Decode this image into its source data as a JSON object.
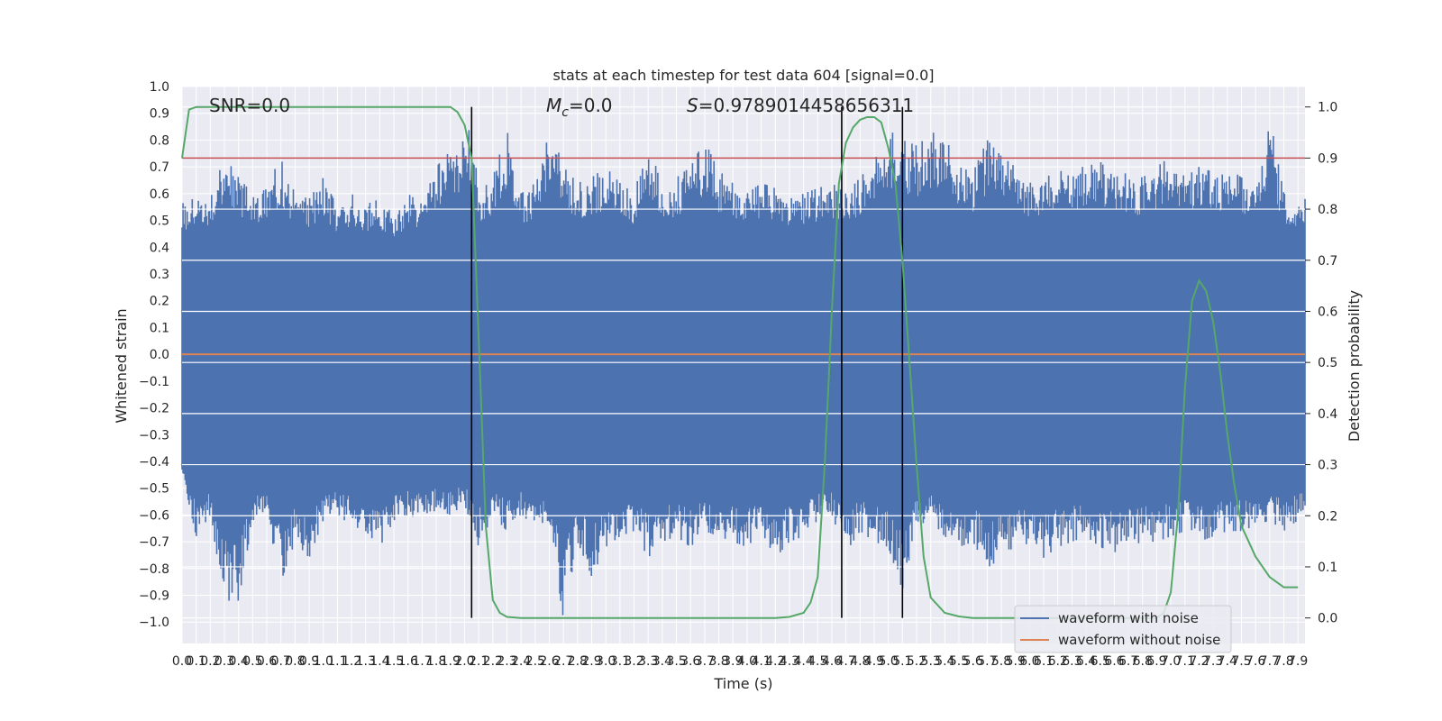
{
  "chart_data": {
    "type": "line",
    "title": "stats at each timestep for test data 604 [signal=0.0]",
    "xlabel": "Time (s)",
    "ylabel": "Whitened strain",
    "y2label": "Detection probability",
    "xlim": [
      0.0,
      7.95
    ],
    "ylim": [
      -1.08,
      1.0
    ],
    "y2lim": [
      -0.05,
      1.04
    ],
    "x_ticks": [
      "0.0",
      "0.1",
      "0.2",
      "0.3",
      "0.4",
      "0.5",
      "0.6",
      "0.7",
      "0.8",
      "0.9",
      "1.0",
      "1.1",
      "1.2",
      "1.3",
      "1.4",
      "1.5",
      "1.6",
      "1.7",
      "1.8",
      "1.9",
      "2.0",
      "2.1",
      "2.2",
      "2.3",
      "2.4",
      "2.5",
      "2.6",
      "2.7",
      "2.8",
      "2.9",
      "3.0",
      "3.1",
      "3.2",
      "3.3",
      "3.4",
      "3.5",
      "3.6",
      "3.7",
      "3.8",
      "3.9",
      "4.0",
      "4.1",
      "4.2",
      "4.3",
      "4.4",
      "4.5",
      "4.6",
      "4.7",
      "4.8",
      "4.9",
      "5.0",
      "5.1",
      "5.2",
      "5.3",
      "5.4",
      "5.5",
      "5.6",
      "5.7",
      "5.8",
      "5.9",
      "6.0",
      "6.1",
      "6.2",
      "6.3",
      "6.4",
      "6.5",
      "6.6",
      "6.7",
      "6.8",
      "6.9",
      "7.0",
      "7.1",
      "7.2",
      "7.3",
      "7.4",
      "7.5",
      "7.6",
      "7.7",
      "7.8",
      "7.9"
    ],
    "y_ticks": [
      "1.0",
      "0.9",
      "0.8",
      "0.7",
      "0.6",
      "0.5",
      "0.4",
      "0.3",
      "0.2",
      "0.1",
      "0.0",
      "−0.1",
      "−0.2",
      "−0.3",
      "−0.4",
      "−0.5",
      "−0.6",
      "−0.7",
      "−0.8",
      "−0.9",
      "−1.0"
    ],
    "y2_ticks": [
      "1.0",
      "0.9",
      "0.8",
      "0.7",
      "0.6",
      "0.5",
      "0.4",
      "0.3",
      "0.2",
      "0.1",
      "0.0"
    ],
    "grid": true,
    "legend_position": "lower-right",
    "annotations": {
      "snr": "SNR=0.0",
      "mc_symbol": "M",
      "mc_sub": "c",
      "mc_value": "=0.0",
      "s_symbol": "S",
      "s_value": "=0.9789014458656311"
    },
    "colors": {
      "noise": "#4c72b0",
      "clean": "#dd8452",
      "probability": "#55a868",
      "threshold": "#c44e52",
      "marker": "#000000",
      "plot_bg": "#eaeaf2",
      "grid": "#ffffff"
    },
    "series": [
      {
        "name": "waveform with noise",
        "axis": "left",
        "envelope_upper": [
          [
            0.0,
            0.56
          ],
          [
            0.1,
            0.62
          ],
          [
            0.2,
            0.58
          ],
          [
            0.3,
            0.74
          ],
          [
            0.4,
            0.66
          ],
          [
            0.5,
            0.6
          ],
          [
            0.6,
            0.64
          ],
          [
            0.7,
            0.73
          ],
          [
            0.8,
            0.6
          ],
          [
            0.9,
            0.58
          ],
          [
            1.0,
            0.66
          ],
          [
            1.1,
            0.55
          ],
          [
            1.2,
            0.6
          ],
          [
            1.3,
            0.56
          ],
          [
            1.4,
            0.58
          ],
          [
            1.5,
            0.52
          ],
          [
            1.6,
            0.6
          ],
          [
            1.7,
            0.56
          ],
          [
            1.8,
            0.7
          ],
          [
            1.9,
            0.76
          ],
          [
            2.0,
            0.8
          ],
          [
            2.05,
            0.86
          ],
          [
            2.1,
            0.6
          ],
          [
            2.2,
            0.66
          ],
          [
            2.3,
            0.84
          ],
          [
            2.4,
            0.6
          ],
          [
            2.5,
            0.64
          ],
          [
            2.6,
            0.86
          ],
          [
            2.7,
            0.7
          ],
          [
            2.8,
            0.64
          ],
          [
            2.9,
            0.66
          ],
          [
            3.0,
            0.7
          ],
          [
            3.1,
            0.64
          ],
          [
            3.2,
            0.6
          ],
          [
            3.3,
            0.8
          ],
          [
            3.4,
            0.62
          ],
          [
            3.5,
            0.66
          ],
          [
            3.6,
            0.7
          ],
          [
            3.7,
            0.8
          ],
          [
            3.8,
            0.68
          ],
          [
            3.9,
            0.66
          ],
          [
            4.0,
            0.6
          ],
          [
            4.1,
            0.64
          ],
          [
            4.2,
            0.62
          ],
          [
            4.3,
            0.58
          ],
          [
            4.4,
            0.6
          ],
          [
            4.5,
            0.62
          ],
          [
            4.6,
            0.64
          ],
          [
            4.7,
            0.6
          ],
          [
            4.8,
            0.66
          ],
          [
            4.9,
            0.72
          ],
          [
            5.0,
            0.84
          ],
          [
            5.1,
            0.8
          ],
          [
            5.2,
            0.78
          ],
          [
            5.3,
            0.82
          ],
          [
            5.4,
            0.86
          ],
          [
            5.5,
            0.7
          ],
          [
            5.6,
            0.68
          ],
          [
            5.7,
            0.8
          ],
          [
            5.8,
            0.74
          ],
          [
            5.9,
            0.7
          ],
          [
            6.0,
            0.64
          ],
          [
            6.1,
            0.66
          ],
          [
            6.2,
            0.68
          ],
          [
            6.3,
            0.7
          ],
          [
            6.4,
            0.7
          ],
          [
            6.5,
            0.72
          ],
          [
            6.6,
            0.66
          ],
          [
            6.7,
            0.68
          ],
          [
            6.8,
            0.66
          ],
          [
            6.9,
            0.7
          ],
          [
            7.0,
            0.74
          ],
          [
            7.1,
            0.66
          ],
          [
            7.2,
            0.7
          ],
          [
            7.3,
            0.68
          ],
          [
            7.4,
            0.7
          ],
          [
            7.5,
            0.66
          ],
          [
            7.6,
            0.64
          ],
          [
            7.7,
            0.89
          ],
          [
            7.8,
            0.6
          ],
          [
            7.95,
            0.58
          ]
        ],
        "envelope_lower": [
          [
            0.0,
            -0.44
          ],
          [
            0.1,
            -0.68
          ],
          [
            0.2,
            -0.6
          ],
          [
            0.3,
            -0.92
          ],
          [
            0.4,
            -0.92
          ],
          [
            0.5,
            -0.62
          ],
          [
            0.6,
            -0.6
          ],
          [
            0.7,
            -0.85
          ],
          [
            0.8,
            -0.7
          ],
          [
            0.9,
            -0.76
          ],
          [
            1.0,
            -0.62
          ],
          [
            1.1,
            -0.6
          ],
          [
            1.2,
            -0.64
          ],
          [
            1.3,
            -0.66
          ],
          [
            1.4,
            -0.72
          ],
          [
            1.5,
            -0.62
          ],
          [
            1.6,
            -0.6
          ],
          [
            1.7,
            -0.62
          ],
          [
            1.8,
            -0.58
          ],
          [
            1.9,
            -0.6
          ],
          [
            2.0,
            -0.56
          ],
          [
            2.1,
            -0.72
          ],
          [
            2.2,
            -0.6
          ],
          [
            2.3,
            -0.66
          ],
          [
            2.4,
            -0.6
          ],
          [
            2.5,
            -0.64
          ],
          [
            2.6,
            -0.62
          ],
          [
            2.7,
            -0.99
          ],
          [
            2.8,
            -0.7
          ],
          [
            2.9,
            -0.83
          ],
          [
            3.0,
            -0.72
          ],
          [
            3.1,
            -0.68
          ],
          [
            3.2,
            -0.66
          ],
          [
            3.3,
            -0.76
          ],
          [
            3.4,
            -0.7
          ],
          [
            3.5,
            -0.68
          ],
          [
            3.6,
            -0.72
          ],
          [
            3.7,
            -0.66
          ],
          [
            3.8,
            -0.68
          ],
          [
            3.9,
            -0.7
          ],
          [
            4.0,
            -0.72
          ],
          [
            4.1,
            -0.66
          ],
          [
            4.2,
            -0.76
          ],
          [
            4.3,
            -0.7
          ],
          [
            4.4,
            -0.68
          ],
          [
            4.5,
            -0.62
          ],
          [
            4.6,
            -0.6
          ],
          [
            4.7,
            -0.74
          ],
          [
            4.8,
            -0.66
          ],
          [
            4.9,
            -0.7
          ],
          [
            5.0,
            -0.72
          ],
          [
            5.1,
            -0.88
          ],
          [
            5.2,
            -0.64
          ],
          [
            5.3,
            -0.62
          ],
          [
            5.4,
            -0.68
          ],
          [
            5.5,
            -0.72
          ],
          [
            5.6,
            -0.7
          ],
          [
            5.7,
            -0.8
          ],
          [
            5.8,
            -0.76
          ],
          [
            5.9,
            -0.74
          ],
          [
            6.0,
            -0.7
          ],
          [
            6.1,
            -0.76
          ],
          [
            6.2,
            -0.72
          ],
          [
            6.3,
            -0.7
          ],
          [
            6.4,
            -0.68
          ],
          [
            6.5,
            -0.72
          ],
          [
            6.6,
            -0.74
          ],
          [
            6.7,
            -0.72
          ],
          [
            6.8,
            -0.7
          ],
          [
            6.9,
            -0.7
          ],
          [
            7.0,
            -0.68
          ],
          [
            7.1,
            -0.66
          ],
          [
            7.2,
            -0.7
          ],
          [
            7.3,
            -0.68
          ],
          [
            7.4,
            -0.66
          ],
          [
            7.5,
            -0.66
          ],
          [
            7.6,
            -0.64
          ],
          [
            7.7,
            -0.62
          ],
          [
            7.8,
            -0.66
          ],
          [
            7.95,
            -0.6
          ]
        ]
      },
      {
        "name": "waveform without noise",
        "axis": "left",
        "x": [
          0.0,
          7.95
        ],
        "y": [
          0.0,
          0.0
        ]
      },
      {
        "name": "",
        "axis": "right",
        "x": [
          0.0,
          0.05,
          0.1,
          0.2,
          0.5,
          1.0,
          1.5,
          1.8,
          1.9,
          1.95,
          2.0,
          2.05,
          2.1,
          2.15,
          2.2,
          2.25,
          2.3,
          2.4,
          2.5,
          3.0,
          3.5,
          4.0,
          4.2,
          4.3,
          4.4,
          4.45,
          4.5,
          4.55,
          4.6,
          4.65,
          4.7,
          4.75,
          4.8,
          4.85,
          4.9,
          4.95,
          5.0,
          5.05,
          5.1,
          5.15,
          5.2,
          5.25,
          5.3,
          5.4,
          5.5,
          5.6,
          5.7,
          5.8,
          6.0,
          6.5,
          6.9,
          6.95,
          7.0,
          7.05,
          7.1,
          7.15,
          7.2,
          7.25,
          7.3,
          7.35,
          7.4,
          7.45,
          7.5,
          7.6,
          7.7,
          7.8,
          7.9
        ],
        "y": [
          0.9,
          0.995,
          1.0,
          1.0,
          1.0,
          1.0,
          1.0,
          1.0,
          1.0,
          0.99,
          0.965,
          0.9,
          0.55,
          0.18,
          0.035,
          0.01,
          0.002,
          0.0,
          0.0,
          0.0,
          0.0,
          0.0,
          0.0,
          0.002,
          0.01,
          0.03,
          0.08,
          0.3,
          0.6,
          0.85,
          0.93,
          0.96,
          0.975,
          0.98,
          0.98,
          0.97,
          0.92,
          0.85,
          0.7,
          0.5,
          0.3,
          0.12,
          0.04,
          0.01,
          0.003,
          0.0,
          0.0,
          0.0,
          0.0,
          0.0,
          0.0,
          0.01,
          0.05,
          0.2,
          0.45,
          0.62,
          0.66,
          0.64,
          0.58,
          0.48,
          0.36,
          0.26,
          0.18,
          0.12,
          0.08,
          0.06,
          0.06
        ]
      }
    ],
    "threshold_y2": 0.9,
    "vertical_markers_x": [
      2.05,
      4.67,
      5.1
    ]
  }
}
